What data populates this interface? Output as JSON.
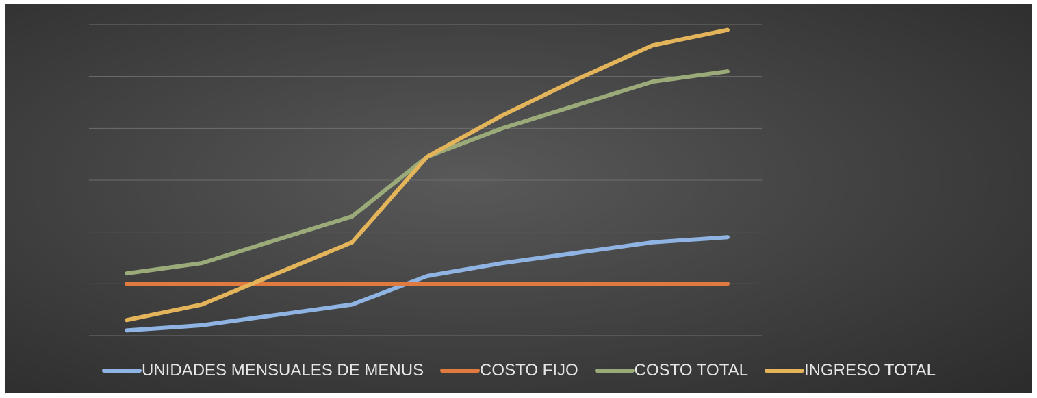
{
  "chart_data": {
    "type": "line",
    "x": [
      1,
      2,
      3,
      4,
      5,
      6,
      7,
      8,
      9
    ],
    "ylim": [
      0,
      6
    ],
    "grid": true,
    "legend_position": "bottom",
    "series": [
      {
        "name": "UNIDADES MENSUALES DE MENUS",
        "color": "#8fb4e3",
        "values": [
          0.1,
          0.2,
          0.4,
          0.6,
          1.15,
          1.4,
          1.6,
          1.8,
          1.9
        ]
      },
      {
        "name": "COSTO FIJO",
        "color": "#e07a3e",
        "values": [
          1.0,
          1.0,
          1.0,
          1.0,
          1.0,
          1.0,
          1.0,
          1.0,
          1.0
        ]
      },
      {
        "name": "COSTO TOTAL",
        "color": "#9aab79",
        "values": [
          1.2,
          1.4,
          1.85,
          2.3,
          3.45,
          4.0,
          4.45,
          4.9,
          5.1
        ]
      },
      {
        "name": "INGRESO TOTAL",
        "color": "#e3b45a",
        "values": [
          0.3,
          0.6,
          1.2,
          1.8,
          3.45,
          4.25,
          4.95,
          5.6,
          5.9
        ]
      }
    ]
  }
}
